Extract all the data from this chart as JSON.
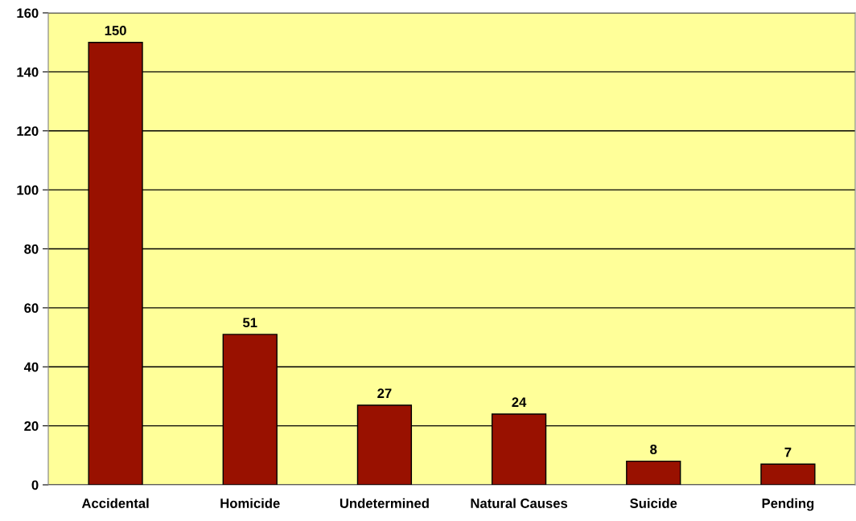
{
  "chart_data": {
    "type": "bar",
    "categories": [
      "Accidental",
      "Homicide",
      "Undetermined",
      "Natural Causes",
      "Suicide",
      "Pending"
    ],
    "values": [
      150,
      51,
      27,
      24,
      8,
      7
    ],
    "color": "#991100",
    "ylim": [
      0,
      160
    ],
    "yticks": [
      0,
      20,
      40,
      60,
      80,
      100,
      120,
      140,
      160
    ],
    "grid": "y",
    "data_labels": true,
    "legend": false
  }
}
